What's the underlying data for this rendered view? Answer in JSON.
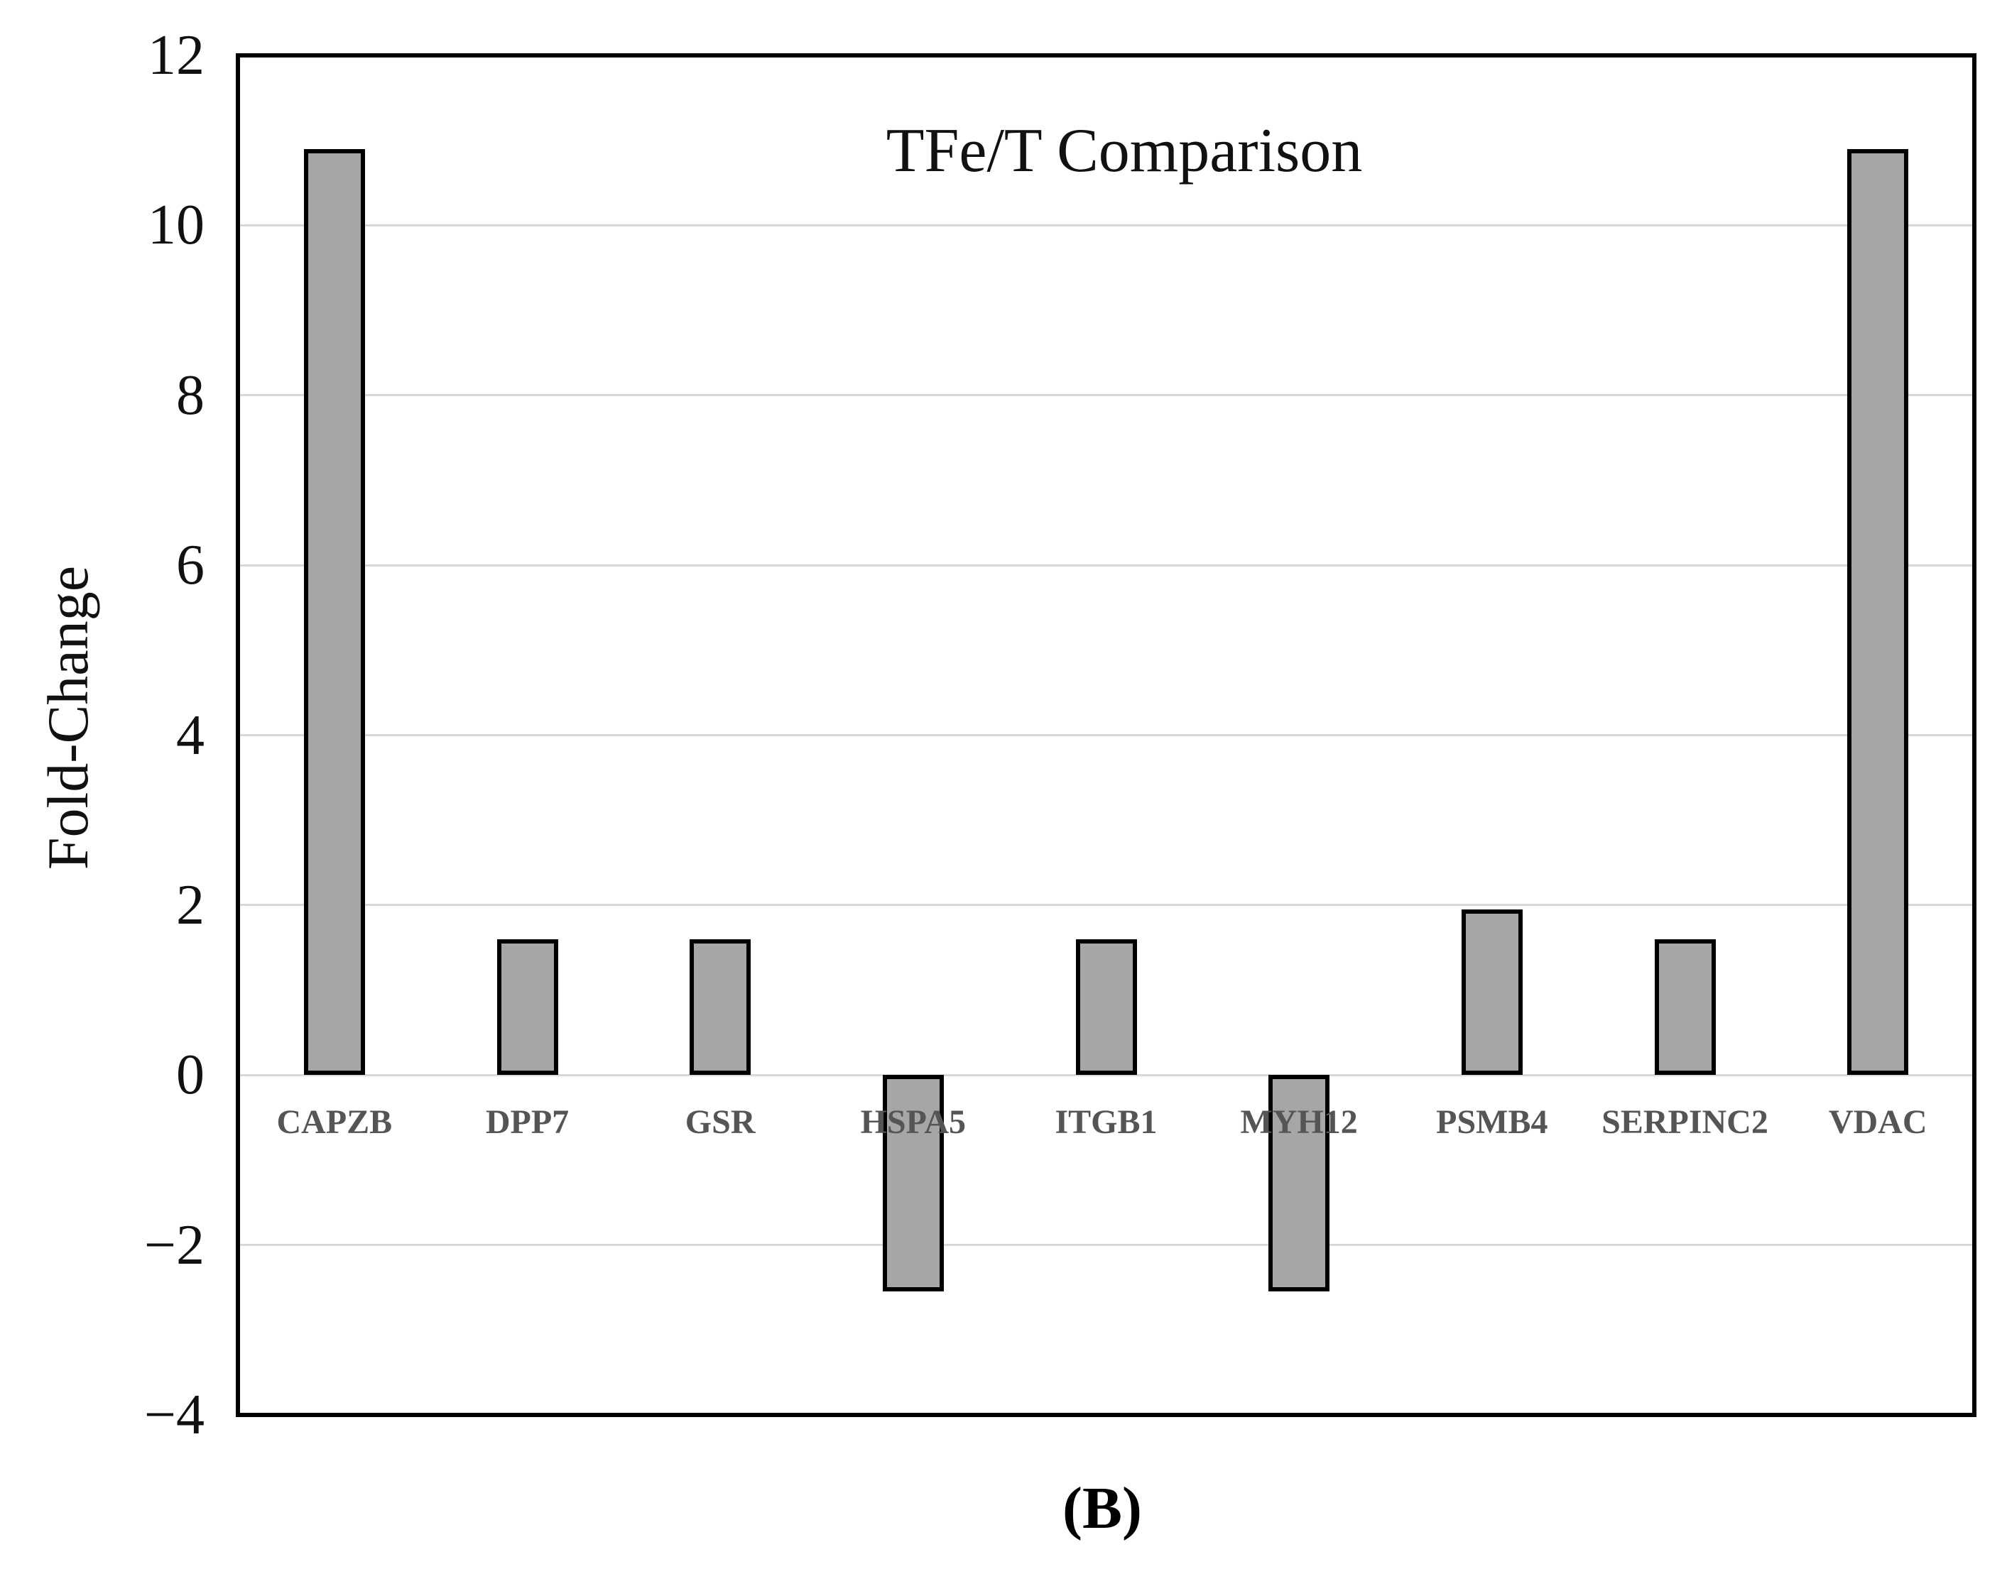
{
  "chart_data": {
    "type": "bar",
    "title": "TFe/T Comparison",
    "ylabel": "Fold-Change",
    "caption": "(B)",
    "categories": [
      "CAPZB",
      "DPP7",
      "GSR",
      "HSPA5",
      "ITGB1",
      "MYH12",
      "PSMB4",
      "SERPINC2",
      "VDAC"
    ],
    "values": [
      10.9,
      1.6,
      1.6,
      -2.55,
      1.6,
      -2.55,
      1.95,
      1.6,
      10.9
    ],
    "xlabel": "",
    "ylim": [
      -4,
      12
    ],
    "ytick_values": [
      12,
      10,
      8,
      6,
      4,
      2,
      0,
      -2,
      -4
    ],
    "ytick_labels": [
      "12",
      "10",
      "8",
      "6",
      "4",
      "2",
      "0",
      "−2",
      "−4"
    ],
    "grid": true,
    "legend": "none",
    "bar_fill_color": "#a6a6a6",
    "bar_border_color": "#000000",
    "gridline_color": "#d9d9d9",
    "frame_color": "#000000",
    "category_label_color": "#555555",
    "text_color": "#111111"
  }
}
